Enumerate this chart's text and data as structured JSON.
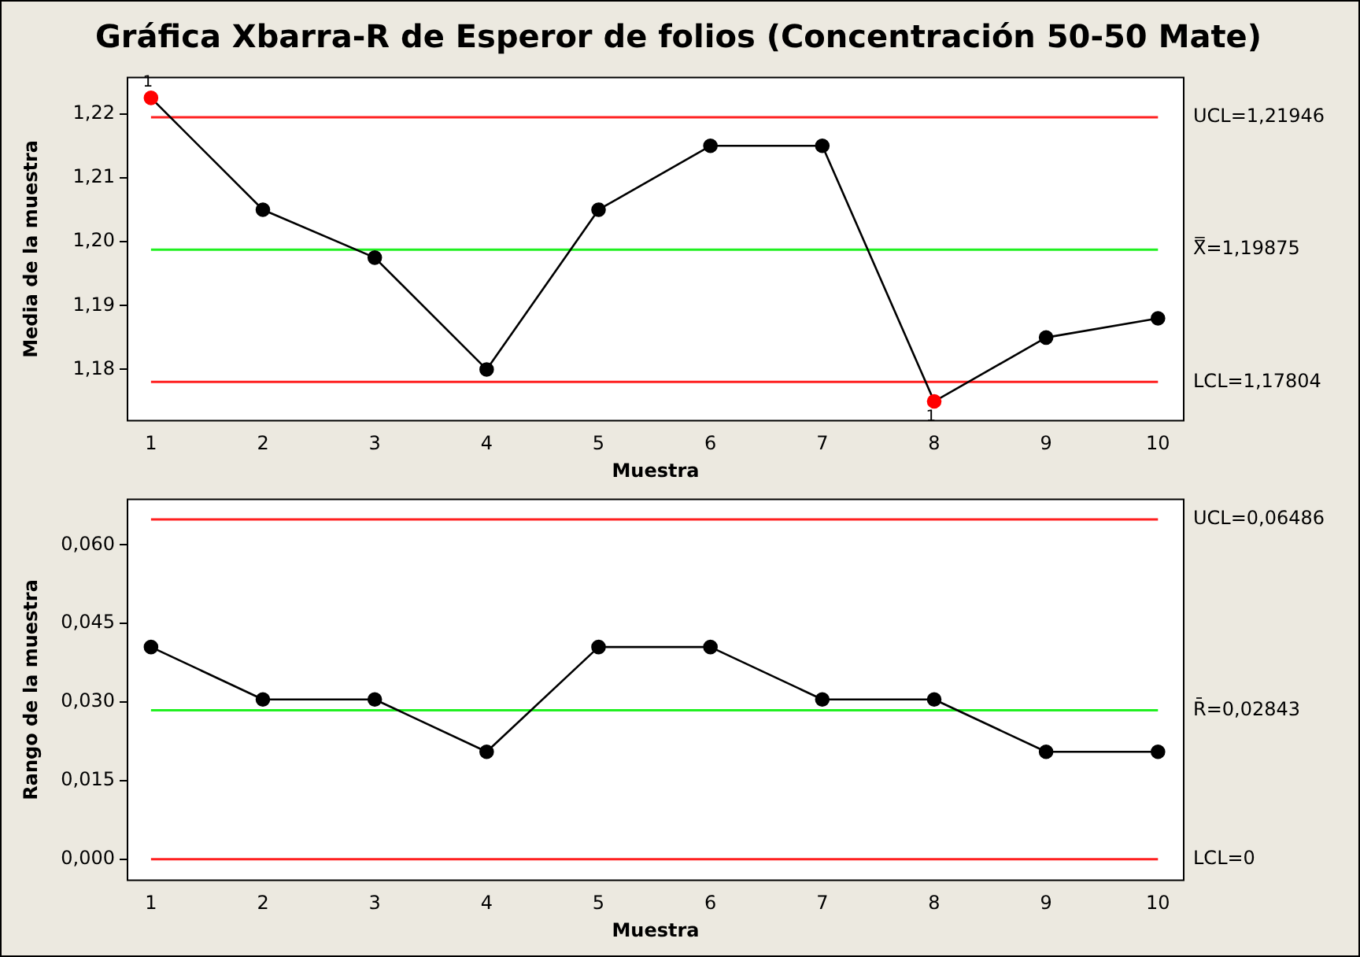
{
  "chart_data": [
    {
      "type": "line",
      "title": "Gráfica Xbarra-R de Esperor de folios (Concentración 50-50 Mate)",
      "xlabel": "Muestra",
      "ylabel": "Media de la muestra",
      "x": [
        1,
        2,
        3,
        4,
        5,
        6,
        7,
        8,
        9,
        10
      ],
      "xlim": [
        0.79,
        10.23
      ],
      "xticks": [
        1,
        2,
        3,
        4,
        5,
        6,
        7,
        8,
        9,
        10
      ],
      "ylim": [
        1.172,
        1.2257
      ],
      "yticks": [
        {
          "value": 1.18,
          "label": "1,18"
        },
        {
          "value": 1.19,
          "label": "1,19"
        },
        {
          "value": 1.2,
          "label": "1,20"
        },
        {
          "value": 1.21,
          "label": "1,21"
        },
        {
          "value": 1.22,
          "label": "1,22"
        }
      ],
      "marker": "circle",
      "grid": false,
      "legend": false,
      "series": [
        {
          "color": "#000000",
          "colors": [
            "#ff0000",
            "#000000",
            "#000000",
            "#000000",
            "#000000",
            "#000000",
            "#000000",
            "#ff0000",
            "#000000",
            "#000000"
          ],
          "values": [
            1.2225,
            1.205,
            1.1975,
            1.18,
            1.205,
            1.215,
            1.215,
            1.175,
            1.185,
            1.188
          ]
        }
      ],
      "ref_lines": [
        {
          "axis": "y",
          "value": 1.21946,
          "label": "UCL=1,21946",
          "color": "#ff2020"
        },
        {
          "axis": "y",
          "value": 1.19875,
          "label": "X̿=1,19875",
          "color": "#20f020"
        },
        {
          "axis": "y",
          "value": 1.17804,
          "label": "LCL=1,17804",
          "color": "#ff2020"
        }
      ],
      "annotations": [
        {
          "text": "1",
          "x": 1,
          "y": 1.2225
        },
        {
          "text": "1",
          "x": 8,
          "y": 1.175
        }
      ]
    },
    {
      "type": "line",
      "xlabel": "Muestra",
      "ylabel": "Rango de la muestra",
      "x": [
        1,
        2,
        3,
        4,
        5,
        6,
        7,
        8,
        9,
        10
      ],
      "xlim": [
        0.79,
        10.23
      ],
      "xticks": [
        1,
        2,
        3,
        4,
        5,
        6,
        7,
        8,
        9,
        10
      ],
      "ylim": [
        -0.004,
        0.0687
      ],
      "yticks": [
        {
          "value": 0,
          "label": "0,000"
        },
        {
          "value": 0.015,
          "label": "0,015"
        },
        {
          "value": 0.03,
          "label": "0,030"
        },
        {
          "value": 0.045,
          "label": "0,045"
        },
        {
          "value": 0.06,
          "label": "0,060"
        }
      ],
      "marker": "circle",
      "grid": false,
      "legend": false,
      "series": [
        {
          "color": "#000000",
          "values": [
            0.0405,
            0.0305,
            0.0305,
            0.0205,
            0.0405,
            0.0405,
            0.0305,
            0.0305,
            0.0205,
            0.0205
          ]
        }
      ],
      "ref_lines": [
        {
          "axis": "y",
          "value": 0.06486,
          "label": "UCL=0,06486",
          "color": "#ff2020"
        },
        {
          "axis": "y",
          "value": 0.02843,
          "label": "R̄=0,02843",
          "color": "#20f020"
        },
        {
          "axis": "y",
          "value": 0,
          "label": "LCL=0",
          "color": "#ff2020"
        }
      ]
    }
  ]
}
